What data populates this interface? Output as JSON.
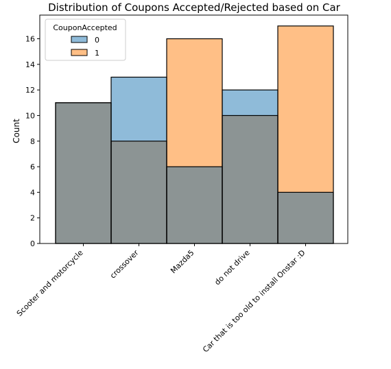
{
  "chart_data": {
    "type": "bar",
    "title": "Distribution of Coupons Accepted/Rejected based on Car",
    "xlabel": "",
    "ylabel": "Count",
    "ylim": [
      0,
      17.85
    ],
    "yticks": [
      0,
      2,
      4,
      6,
      8,
      10,
      12,
      14,
      16
    ],
    "categories": [
      "Scooter and motorcycle",
      "crossover",
      "Mazda5",
      "do not drive",
      "Car that is too old to install Onstar :D"
    ],
    "series": [
      {
        "name": "0",
        "values": [
          11,
          13,
          6,
          12,
          4
        ],
        "color": "#1f77b4"
      },
      {
        "name": "1",
        "values": [
          11,
          8,
          16,
          10,
          17
        ],
        "color": "#ff7f0e"
      }
    ],
    "legend": {
      "title": "CouponAccepted",
      "position": "top-left",
      "entries": [
        "0",
        "1"
      ]
    },
    "overlap_color": "#8c9494",
    "grid": false
  }
}
